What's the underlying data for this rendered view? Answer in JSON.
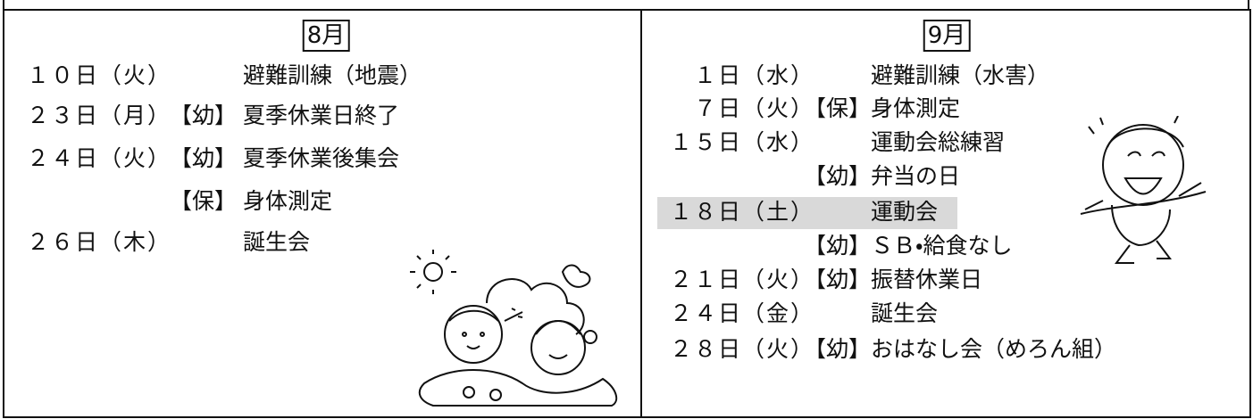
{
  "august": {
    "heading": "8月",
    "rows": [
      {
        "date": "１０日（火）",
        "event": "避難訓練（地震）"
      },
      {
        "date": "２３日（月）",
        "tag": "【幼】",
        "event": "夏季休業日終了"
      },
      {
        "date": "２４日（火）",
        "tag": "【幼】",
        "event": "夏季休業後集会"
      },
      {
        "tag": "【保】",
        "event": "身体測定"
      },
      {
        "date": "２６日（木）",
        "event": "誕生会"
      }
    ]
  },
  "september": {
    "heading": "9月",
    "rows": [
      {
        "date": "１日（水）",
        "event": "避難訓練（水害）"
      },
      {
        "date": "７日（火）",
        "tag": "【保】",
        "event": "身体測定"
      },
      {
        "date": "１５日（水）",
        "event": "運動会総練習"
      },
      {
        "tag": "【幼】",
        "event": "弁当の日"
      },
      {
        "date": "１８日（土）",
        "event": "運動会"
      },
      {
        "tag": "【幼】",
        "event": "ＳＢ・給食なし"
      },
      {
        "date": "２１日（火）",
        "tag": "【幼】",
        "event": "振替休業日"
      },
      {
        "date": "２４日（金）",
        "event": "誕生会"
      },
      {
        "date": "２８日（火）",
        "tag": "【幼】",
        "event": "おはなし会（めろん組）"
      }
    ]
  }
}
